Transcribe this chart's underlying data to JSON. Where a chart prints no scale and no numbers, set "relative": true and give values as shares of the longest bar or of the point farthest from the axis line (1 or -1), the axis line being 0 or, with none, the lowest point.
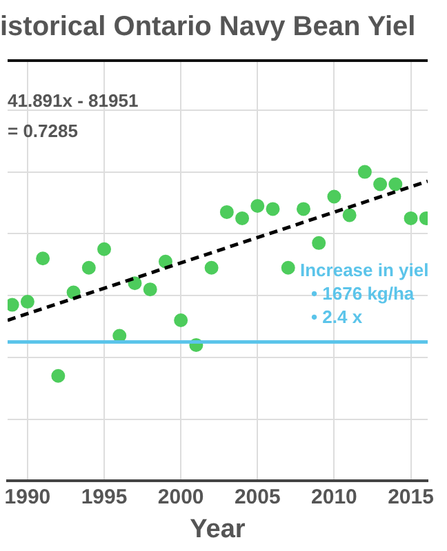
{
  "chart_data": {
    "type": "scatter",
    "title": "istorical Ontario Navy Bean Yiel",
    "xlabel": "Year",
    "relative": true,
    "x": [
      1989,
      1990,
      1991,
      1992,
      1993,
      1994,
      1995,
      1996,
      1997,
      1998,
      1999,
      2000,
      2001,
      2002,
      2003,
      2004,
      2005,
      2006,
      2007,
      2008,
      2009,
      2010,
      2011,
      2012,
      2013,
      2014,
      2015,
      2016
    ],
    "series": [
      {
        "color": "#4dcc5c",
        "values": [
          0.57,
          0.58,
          0.72,
          0.34,
          0.61,
          0.69,
          0.75,
          0.47,
          0.64,
          0.62,
          0.71,
          0.52,
          0.44,
          0.69,
          0.87,
          0.85,
          0.89,
          0.88,
          0.69,
          0.88,
          0.77,
          0.92,
          0.86,
          1,
          0.96,
          0.96,
          0.85,
          0.85
        ]
      },
      {
        "type": "line",
        "color": "#000000",
        "line_style": "dashed",
        "marker": "none",
        "x": [
          1988.7,
          2016.1
        ],
        "values": [
          0.52,
          0.97
        ]
      }
    ],
    "marker": "circle",
    "xlim": [
      1988.7,
      2016.1
    ],
    "xticks": [
      1990,
      1995,
      2000,
      2005,
      2010,
      2015
    ],
    "ref_lines": [
      {
        "axis": "y",
        "value": 0.45,
        "color": "#5bc4ea"
      }
    ],
    "annotations": [
      "41.891x - 81951",
      "= 0.7285",
      "Increase in yiel",
      "• 1676 kg/ha",
      "• 2.4 x"
    ],
    "grid": true,
    "legend": false
  }
}
